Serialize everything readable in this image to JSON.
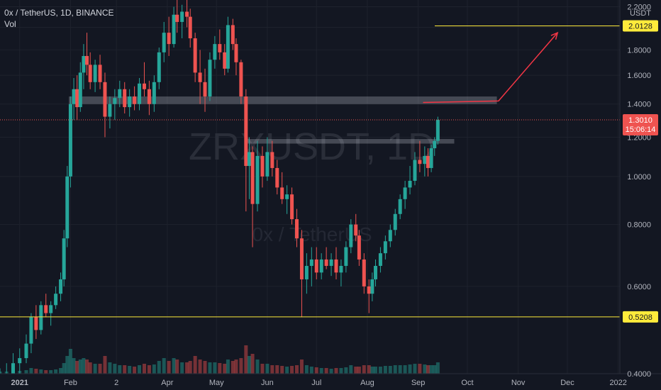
{
  "header": {
    "symbol_line": "0x / TetherUS, 1D, BINANCE",
    "indicator": "Vol"
  },
  "watermark": {
    "ticker": "ZRXUSDT, 1D",
    "name": "0x / TetherUS"
  },
  "price_axis": {
    "currency": "USDT",
    "ticks": [
      "2.2000",
      "2.0000",
      "1.8000",
      "1.6000",
      "1.4000",
      "1.2000",
      "1.0000",
      "0.8000",
      "0.6000",
      "0.4000"
    ]
  },
  "time_axis": {
    "labels": [
      "2021",
      "Feb",
      "2",
      "Apr",
      "May",
      "Jun",
      "Jul",
      "Aug",
      "Sep",
      "Oct",
      "Nov",
      "Dec",
      "2022"
    ]
  },
  "markers": {
    "target_value": "2.0128",
    "current_price": "1.3010",
    "countdown": "15:06:14",
    "support_value": "0.5208"
  },
  "colors": {
    "background": "#131722",
    "up": "#26a69a",
    "down": "#ef5350",
    "line_yellow": "#ffeb3b",
    "arrow": "#f23645",
    "text": "#d1d4dc",
    "grid": "#1e222d"
  },
  "chart_data": {
    "type": "candlestick",
    "title": "0x / TetherUS, 1D, BINANCE",
    "y_scale": "log",
    "ylim": [
      0.4,
      2.27
    ],
    "xlim": [
      "2020-12-20",
      "2022-01-02"
    ],
    "horizontal_lines": [
      {
        "value": 2.0128,
        "color": "#ffeb3b"
      },
      {
        "value": 0.5208,
        "color": "#ffeb3b"
      }
    ],
    "zones": [
      {
        "from": "2021-01-31",
        "to": "2021-10-19",
        "low": 1.4,
        "high": 1.45
      },
      {
        "from": "2021-05-20",
        "to": "2021-09-23",
        "low": 1.165,
        "high": 1.19
      }
    ],
    "projection_arrow": [
      {
        "date": "2021-09-04",
        "price": 1.41
      },
      {
        "date": "2021-10-20",
        "price": 1.42
      },
      {
        "date": "2021-11-25",
        "price": 1.95
      }
    ],
    "current_price": 1.301,
    "candles": [
      [
        "2020-12-20",
        0.38,
        0.41,
        0.36,
        0.39,
        3
      ],
      [
        "2020-12-24",
        0.39,
        0.42,
        0.37,
        0.4,
        3
      ],
      [
        "2020-12-28",
        0.4,
        0.44,
        0.39,
        0.42,
        3
      ],
      [
        "2021-01-01",
        0.42,
        0.45,
        0.4,
        0.43,
        4
      ],
      [
        "2021-01-05",
        0.43,
        0.48,
        0.42,
        0.46,
        5
      ],
      [
        "2021-01-08",
        0.46,
        0.53,
        0.44,
        0.52,
        8
      ],
      [
        "2021-01-11",
        0.52,
        0.55,
        0.47,
        0.49,
        7
      ],
      [
        "2021-01-14",
        0.49,
        0.56,
        0.48,
        0.55,
        6
      ],
      [
        "2021-01-17",
        0.55,
        0.58,
        0.52,
        0.53,
        5
      ],
      [
        "2021-01-20",
        0.53,
        0.56,
        0.5,
        0.55,
        5
      ],
      [
        "2021-01-23",
        0.55,
        0.6,
        0.54,
        0.58,
        6
      ],
      [
        "2021-01-26",
        0.58,
        0.64,
        0.56,
        0.62,
        8
      ],
      [
        "2021-01-28",
        0.62,
        0.78,
        0.6,
        0.75,
        15
      ],
      [
        "2021-01-30",
        0.75,
        1.05,
        0.72,
        1.0,
        25
      ],
      [
        "2021-02-01",
        1.0,
        1.45,
        0.95,
        1.4,
        35
      ],
      [
        "2021-02-03",
        1.4,
        1.58,
        1.3,
        1.5,
        22
      ],
      [
        "2021-02-05",
        1.5,
        1.6,
        1.3,
        1.38,
        18
      ],
      [
        "2021-02-07",
        1.38,
        1.7,
        1.35,
        1.62,
        20
      ],
      [
        "2021-02-09",
        1.62,
        1.85,
        1.5,
        1.75,
        22
      ],
      [
        "2021-02-11",
        1.75,
        1.95,
        1.6,
        1.68,
        20
      ],
      [
        "2021-02-13",
        1.68,
        1.78,
        1.5,
        1.55,
        16
      ],
      [
        "2021-02-16",
        1.55,
        1.72,
        1.48,
        1.68,
        14
      ],
      [
        "2021-02-19",
        1.68,
        1.76,
        1.5,
        1.55,
        14
      ],
      [
        "2021-02-22",
        1.55,
        1.62,
        1.2,
        1.32,
        25
      ],
      [
        "2021-02-25",
        1.32,
        1.45,
        1.25,
        1.4,
        16
      ],
      [
        "2021-02-28",
        1.4,
        1.5,
        1.3,
        1.44,
        14
      ],
      [
        "2021-03-03",
        1.44,
        1.56,
        1.38,
        1.5,
        12
      ],
      [
        "2021-03-06",
        1.5,
        1.55,
        1.34,
        1.38,
        12
      ],
      [
        "2021-03-09",
        1.38,
        1.5,
        1.32,
        1.45,
        11
      ],
      [
        "2021-03-12",
        1.45,
        1.52,
        1.36,
        1.4,
        10
      ],
      [
        "2021-03-15",
        1.4,
        1.58,
        1.36,
        1.54,
        12
      ],
      [
        "2021-03-18",
        1.54,
        1.7,
        1.45,
        1.5,
        14
      ],
      [
        "2021-03-21",
        1.5,
        1.56,
        1.33,
        1.4,
        12
      ],
      [
        "2021-03-24",
        1.4,
        1.6,
        1.35,
        1.55,
        13
      ],
      [
        "2021-03-27",
        1.55,
        1.82,
        1.5,
        1.78,
        18
      ],
      [
        "2021-03-30",
        1.78,
        2.05,
        1.7,
        1.95,
        22
      ],
      [
        "2021-04-02",
        1.95,
        2.1,
        1.75,
        1.85,
        18
      ],
      [
        "2021-04-05",
        1.85,
        2.2,
        1.82,
        2.12,
        22
      ],
      [
        "2021-04-07",
        2.12,
        2.3,
        1.95,
        2.05,
        20
      ],
      [
        "2021-04-10",
        2.05,
        2.22,
        1.9,
        2.15,
        16
      ],
      [
        "2021-04-13",
        2.15,
        2.3,
        2.0,
        2.1,
        16
      ],
      [
        "2021-04-15",
        2.1,
        2.18,
        1.82,
        1.9,
        18
      ],
      [
        "2021-04-18",
        1.9,
        1.95,
        1.55,
        1.62,
        25
      ],
      [
        "2021-04-21",
        1.62,
        1.8,
        1.4,
        1.55,
        20
      ],
      [
        "2021-04-24",
        1.55,
        1.65,
        1.35,
        1.45,
        18
      ],
      [
        "2021-04-27",
        1.45,
        1.78,
        1.42,
        1.72,
        16
      ],
      [
        "2021-04-30",
        1.72,
        1.92,
        1.65,
        1.85,
        16
      ],
      [
        "2021-05-03",
        1.85,
        1.98,
        1.72,
        1.78,
        15
      ],
      [
        "2021-05-06",
        1.78,
        1.85,
        1.6,
        1.65,
        14
      ],
      [
        "2021-05-08",
        1.65,
        2.1,
        1.62,
        2.02,
        20
      ],
      [
        "2021-05-11",
        2.02,
        2.08,
        1.8,
        1.85,
        18
      ],
      [
        "2021-05-13",
        1.85,
        1.9,
        1.6,
        1.7,
        20
      ],
      [
        "2021-05-16",
        1.7,
        1.72,
        1.4,
        1.45,
        22
      ],
      [
        "2021-05-19",
        1.45,
        1.5,
        0.85,
        1.05,
        40
      ],
      [
        "2021-05-21",
        1.05,
        1.2,
        0.9,
        1.12,
        25
      ],
      [
        "2021-05-23",
        1.12,
        1.15,
        0.72,
        0.88,
        28
      ],
      [
        "2021-05-26",
        0.88,
        1.18,
        0.85,
        1.1,
        20
      ],
      [
        "2021-05-29",
        1.1,
        1.15,
        0.95,
        1.0,
        14
      ],
      [
        "2021-06-01",
        1.0,
        1.2,
        0.98,
        1.12,
        14
      ],
      [
        "2021-06-04",
        1.12,
        1.18,
        1.0,
        1.04,
        12
      ],
      [
        "2021-06-07",
        1.04,
        1.08,
        0.92,
        0.95,
        12
      ],
      [
        "2021-06-10",
        0.95,
        1.02,
        0.88,
        0.9,
        11
      ],
      [
        "2021-06-13",
        0.9,
        0.96,
        0.84,
        0.92,
        10
      ],
      [
        "2021-06-16",
        0.92,
        0.95,
        0.8,
        0.82,
        11
      ],
      [
        "2021-06-19",
        0.82,
        0.86,
        0.72,
        0.75,
        12
      ],
      [
        "2021-06-22",
        0.75,
        0.78,
        0.52,
        0.62,
        20
      ],
      [
        "2021-06-25",
        0.62,
        0.7,
        0.58,
        0.66,
        12
      ],
      [
        "2021-06-28",
        0.66,
        0.72,
        0.6,
        0.68,
        10
      ],
      [
        "2021-07-01",
        0.68,
        0.72,
        0.62,
        0.64,
        9
      ],
      [
        "2021-07-04",
        0.64,
        0.7,
        0.62,
        0.68,
        8
      ],
      [
        "2021-07-07",
        0.68,
        0.72,
        0.65,
        0.66,
        8
      ],
      [
        "2021-07-10",
        0.66,
        0.7,
        0.63,
        0.68,
        7
      ],
      [
        "2021-07-13",
        0.68,
        0.72,
        0.62,
        0.64,
        8
      ],
      [
        "2021-07-16",
        0.64,
        0.68,
        0.6,
        0.66,
        8
      ],
      [
        "2021-07-19",
        0.66,
        0.74,
        0.64,
        0.72,
        9
      ],
      [
        "2021-07-22",
        0.72,
        0.82,
        0.7,
        0.8,
        12
      ],
      [
        "2021-07-25",
        0.8,
        0.84,
        0.74,
        0.76,
        10
      ],
      [
        "2021-07-27",
        0.76,
        0.78,
        0.66,
        0.68,
        10
      ],
      [
        "2021-07-30",
        0.68,
        0.7,
        0.58,
        0.6,
        12
      ],
      [
        "2021-08-02",
        0.6,
        0.62,
        0.53,
        0.58,
        12
      ],
      [
        "2021-08-04",
        0.58,
        0.64,
        0.56,
        0.62,
        10
      ],
      [
        "2021-08-06",
        0.62,
        0.68,
        0.6,
        0.66,
        10
      ],
      [
        "2021-08-09",
        0.66,
        0.72,
        0.64,
        0.7,
        10
      ],
      [
        "2021-08-12",
        0.7,
        0.76,
        0.68,
        0.74,
        11
      ],
      [
        "2021-08-15",
        0.74,
        0.8,
        0.72,
        0.78,
        11
      ],
      [
        "2021-08-18",
        0.78,
        0.86,
        0.76,
        0.84,
        12
      ],
      [
        "2021-08-21",
        0.84,
        0.92,
        0.82,
        0.9,
        12
      ],
      [
        "2021-08-24",
        0.9,
        0.98,
        0.86,
        0.95,
        12
      ],
      [
        "2021-08-27",
        0.95,
        1.05,
        0.92,
        0.98,
        13
      ],
      [
        "2021-08-30",
        0.98,
        1.12,
        0.96,
        1.08,
        14
      ],
      [
        "2021-09-02",
        1.08,
        1.18,
        1.02,
        1.06,
        14
      ],
      [
        "2021-09-05",
        1.06,
        1.15,
        1.0,
        1.1,
        13
      ],
      [
        "2021-09-07",
        1.1,
        1.14,
        1.0,
        1.04,
        12
      ],
      [
        "2021-09-09",
        1.04,
        1.16,
        1.02,
        1.14,
        12
      ],
      [
        "2021-09-11",
        1.14,
        1.2,
        1.1,
        1.18,
        12
      ],
      [
        "2021-09-13",
        1.18,
        1.32,
        1.16,
        1.301,
        16
      ]
    ]
  }
}
